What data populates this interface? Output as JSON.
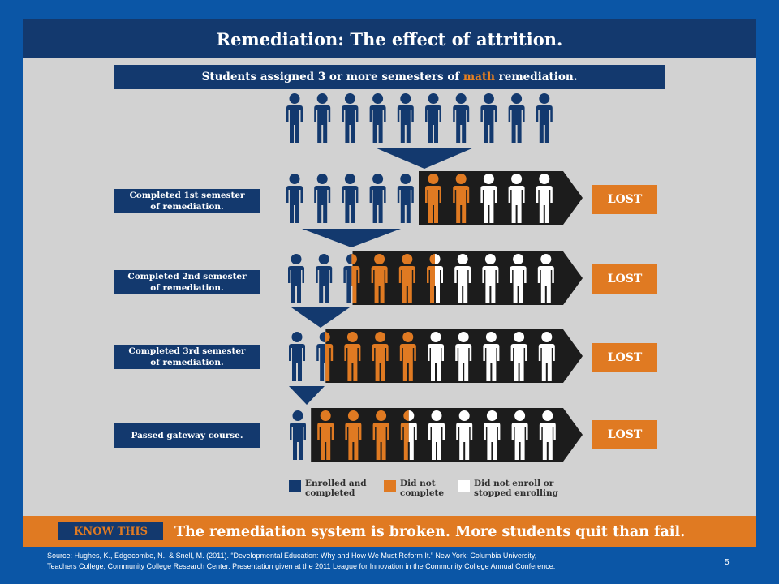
{
  "title": "Remediation: The effect of attrition.",
  "subtitle": {
    "before": "Students assigned 3 or more semesters of ",
    "highlight": "math",
    "after": " remediation."
  },
  "colors": {
    "navy": "#13396e",
    "orange": "#e07a22",
    "white": "#ffffff",
    "black": "#1c1c1c",
    "gray": "#d2d2d2",
    "border_blue": "#0b56a6"
  },
  "icons": {
    "person": "person-icon",
    "funnel": "down-triangle-arrow",
    "arrow": "right-pointing-arrow"
  },
  "initial_cohort": 10,
  "stages": [
    {
      "label": "Completed 1st semester\nof remediation.",
      "completed": 5,
      "did_not_complete": 2,
      "did_not_enroll": 3,
      "lost_label": "LOST"
    },
    {
      "label": "Completed 2nd semester\nof remediation.",
      "completed": 2.5,
      "did_not_complete": 3,
      "did_not_enroll": 4.5,
      "lost_label": "LOST"
    },
    {
      "label": "Completed 3rd semester\nof remediation.",
      "completed": 1.5,
      "did_not_complete": 3.5,
      "did_not_enroll": 5,
      "lost_label": "LOST"
    },
    {
      "label": "Passed gateway course.",
      "completed": 1,
      "did_not_complete": 3.5,
      "did_not_enroll": 5.5,
      "lost_label": "LOST"
    }
  ],
  "legend": [
    {
      "label": "Enrolled and\ncompleted",
      "color": "#13396e"
    },
    {
      "label": "Did not\ncomplete",
      "color": "#e07a22"
    },
    {
      "label": "Did not enroll or\nstopped enrolling",
      "color": "#ffffff"
    }
  ],
  "know_this": {
    "tag": "KNOW THIS",
    "text": "The remediation system is broken. More students quit than fail."
  },
  "source": "Source: Hughes, K., Edgecombe, N., & Snell, M. (2011). “Developmental Education: Why and How We Must Reform It.”  New York: Columbia University,\nTeachers College, Community College Research Center. Presentation given at the 2011 League for Innovation in the Community College Annual Conference.",
  "page_number": "5"
}
